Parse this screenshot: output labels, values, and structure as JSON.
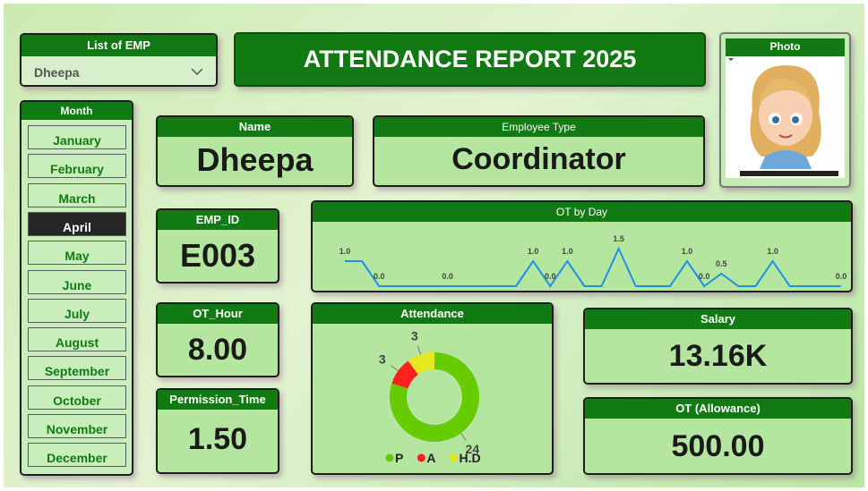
{
  "employee_list": {
    "title": "List of EMP",
    "selected": "Dheepa"
  },
  "report_title": "ATTENDANCE REPORT 2025",
  "photo": {
    "title": "Photo"
  },
  "month_slicer": {
    "title": "Month",
    "months": [
      "January",
      "February",
      "March",
      "April",
      "May",
      "June",
      "July",
      "August",
      "September",
      "October",
      "November",
      "December"
    ],
    "selected_index": 3
  },
  "cards": {
    "name": {
      "title": "Name",
      "value": "Dheepa"
    },
    "employee_type": {
      "title": "Employee Type",
      "value": "Coordinator"
    },
    "emp_id": {
      "title": "EMP_ID",
      "value": "E003"
    },
    "ot_hour": {
      "title": "OT_Hour",
      "value": "8.00"
    },
    "permission_time": {
      "title": "Permission_Time",
      "value": "1.50"
    },
    "salary": {
      "title": "Salary",
      "value": "13.16K"
    },
    "ot_allowance": {
      "title": "OT (Allowance)",
      "value": "500.00"
    }
  },
  "chart_data": [
    {
      "type": "line",
      "title": "OT by Day",
      "color": "#1e90e6",
      "values": [
        1,
        1,
        0,
        0,
        0,
        0,
        0,
        0,
        0,
        0,
        0,
        1,
        0,
        1,
        0,
        0,
        1.5,
        0,
        0,
        0,
        1,
        0,
        0.5,
        0,
        0,
        1,
        0,
        0,
        0,
        0
      ],
      "value_labels": [
        "1.0",
        null,
        "0.0",
        null,
        null,
        null,
        "0.0",
        null,
        null,
        null,
        null,
        "1.0",
        "0.0",
        "1.0",
        null,
        null,
        "1.5",
        null,
        null,
        null,
        "1.0",
        "0.0",
        "0.5",
        null,
        null,
        "1.0",
        null,
        null,
        null,
        "0.0"
      ]
    },
    {
      "type": "donut",
      "title": "Attendance",
      "categories": [
        "P",
        "A",
        "H.D"
      ],
      "values": [
        24,
        3,
        3
      ],
      "colors": [
        "#66cc00",
        "#ff2020",
        "#e8e820"
      ]
    }
  ]
}
